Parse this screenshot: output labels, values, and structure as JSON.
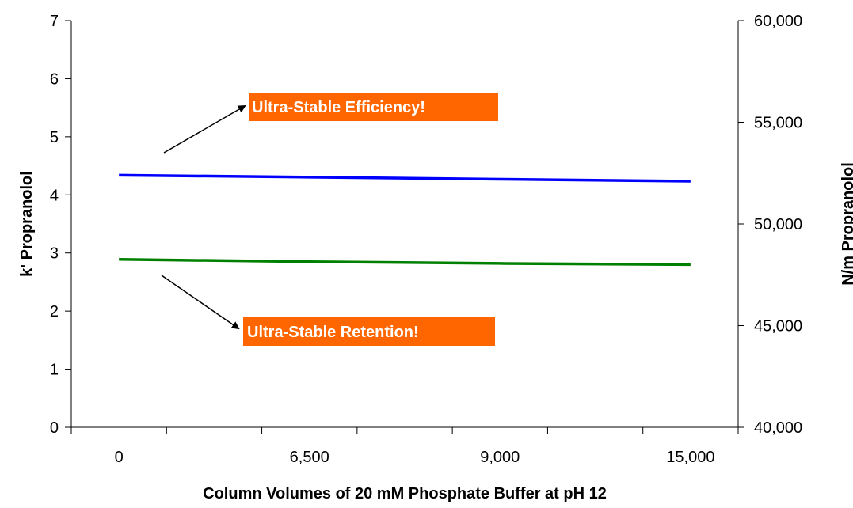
{
  "chart_data": {
    "type": "line",
    "xlabel": "Column Volumes of 20 mM Phosphate Buffer at pH 12",
    "ylabel": "k' Propranolol",
    "y2label": "N/m Propranolol",
    "categories": [
      "0",
      "6,500",
      "9,000",
      "15,000"
    ],
    "ylim": [
      0,
      7
    ],
    "y_ticks": [
      "0",
      "1",
      "2",
      "3",
      "4",
      "5",
      "6",
      "7"
    ],
    "y2lim": [
      40000,
      60000
    ],
    "y2_ticks": [
      "40,000",
      "45,000",
      "50,000",
      "55,000",
      "60,000"
    ],
    "grid": false,
    "legend": "none",
    "series": [
      {
        "axis": "right",
        "values": [
          52400,
          52300,
          52200,
          52100
        ],
        "color": "#0000ff"
      },
      {
        "axis": "left",
        "values": [
          2.89,
          2.85,
          2.82,
          2.8
        ],
        "color": "#008000"
      }
    ],
    "annotations": [
      {
        "text": "Ultra-Stable Efficiency!",
        "bg": "#ff6600"
      },
      {
        "text": "Ultra-Stable Retention!",
        "bg": "#ff6600"
      }
    ]
  }
}
